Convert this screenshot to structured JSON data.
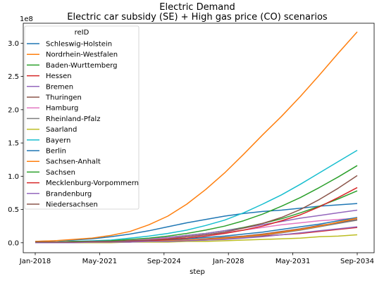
{
  "chart_data": {
    "type": "line",
    "title": "Electric Demand",
    "subtitle": "Electric car subsidy (SE) + High gas price (CO) scenarios",
    "xlabel": "step",
    "ylabel": "",
    "y_offset_label": "1e8",
    "x_ticks": [
      "Jan-2018",
      "May-2021",
      "Sep-2024",
      "Jan-2028",
      "May-2031",
      "Sep-2034"
    ],
    "y_ticks": [
      "0.0",
      "0.5",
      "1.0",
      "1.5",
      "2.0",
      "2.5",
      "3.0"
    ],
    "ylim": [
      -0.15,
      3.3
    ],
    "grid": false,
    "legend_title": "reID",
    "legend_position": "upper left",
    "x": [
      "Jan-2018",
      "Jan-2019",
      "Jan-2020",
      "Jan-2021",
      "Jan-2022",
      "Jan-2023",
      "Jan-2024",
      "Jan-2025",
      "Jan-2026",
      "Jan-2027",
      "Jan-2028",
      "Jan-2029",
      "Jan-2030",
      "Jan-2031",
      "Jan-2032",
      "Jan-2033",
      "Jan-2034",
      "Jan-2035"
    ],
    "series": [
      {
        "name": "Schleswig-Holstein",
        "color": "#1f77b4",
        "values": [
          0.02,
          0.03,
          0.04,
          0.06,
          0.09,
          0.13,
          0.18,
          0.24,
          0.3,
          0.35,
          0.4,
          0.44,
          0.47,
          0.49,
          0.52,
          0.55,
          0.57,
          0.59
        ]
      },
      {
        "name": "Nordrhein-Westfalen",
        "color": "#ff7f0e",
        "values": [
          0.02,
          0.03,
          0.05,
          0.07,
          0.11,
          0.17,
          0.27,
          0.4,
          0.58,
          0.8,
          1.05,
          1.33,
          1.62,
          1.9,
          2.2,
          2.52,
          2.85,
          3.17
        ]
      },
      {
        "name": "Baden-Wurttemberg",
        "color": "#2ca02c",
        "values": [
          0.01,
          0.01,
          0.01,
          0.02,
          0.02,
          0.03,
          0.05,
          0.08,
          0.11,
          0.14,
          0.18,
          0.23,
          0.29,
          0.36,
          0.45,
          0.55,
          0.66,
          0.78
        ]
      },
      {
        "name": "Hessen",
        "color": "#d62728",
        "values": [
          0.0,
          0.0,
          0.0,
          0.01,
          0.01,
          0.01,
          0.02,
          0.03,
          0.04,
          0.05,
          0.06,
          0.08,
          0.1,
          0.12,
          0.14,
          0.17,
          0.2,
          0.23
        ]
      },
      {
        "name": "Bremen",
        "color": "#9467bd",
        "values": [
          0.01,
          0.01,
          0.02,
          0.02,
          0.03,
          0.04,
          0.06,
          0.08,
          0.11,
          0.14,
          0.18,
          0.22,
          0.27,
          0.32,
          0.37,
          0.41,
          0.45,
          0.49
        ]
      },
      {
        "name": "Thuringen",
        "color": "#8c564b",
        "values": [
          0.0,
          0.0,
          0.01,
          0.01,
          0.01,
          0.02,
          0.02,
          0.03,
          0.04,
          0.06,
          0.08,
          0.1,
          0.13,
          0.17,
          0.21,
          0.26,
          0.3,
          0.35
        ]
      },
      {
        "name": "Hamburg",
        "color": "#e377c2",
        "values": [
          0.01,
          0.01,
          0.01,
          0.02,
          0.03,
          0.04,
          0.05,
          0.07,
          0.09,
          0.12,
          0.15,
          0.19,
          0.23,
          0.27,
          0.3,
          0.33,
          0.35,
          0.37
        ]
      },
      {
        "name": "Rheinland-Pfalz",
        "color": "#7f7f7f",
        "values": [
          0.0,
          0.0,
          0.0,
          0.01,
          0.01,
          0.01,
          0.02,
          0.02,
          0.03,
          0.04,
          0.06,
          0.08,
          0.11,
          0.15,
          0.19,
          0.24,
          0.29,
          0.34
        ]
      },
      {
        "name": "Saarland",
        "color": "#bcbd22",
        "values": [
          0.0,
          0.0,
          0.0,
          0.0,
          0.0,
          0.01,
          0.01,
          0.01,
          0.02,
          0.02,
          0.03,
          0.04,
          0.05,
          0.06,
          0.07,
          0.09,
          0.1,
          0.12
        ]
      },
      {
        "name": "Bayern",
        "color": "#17becf",
        "values": [
          0.01,
          0.01,
          0.02,
          0.03,
          0.04,
          0.07,
          0.1,
          0.14,
          0.19,
          0.26,
          0.34,
          0.45,
          0.58,
          0.72,
          0.88,
          1.05,
          1.22,
          1.39
        ]
      },
      {
        "name": "Berlin",
        "color": "#1f77b4",
        "values": [
          0.0,
          0.0,
          0.01,
          0.01,
          0.02,
          0.02,
          0.03,
          0.04,
          0.06,
          0.08,
          0.1,
          0.13,
          0.16,
          0.2,
          0.24,
          0.28,
          0.33,
          0.38
        ]
      },
      {
        "name": "Sachsen-Anhalt",
        "color": "#ff7f0e",
        "values": [
          0.0,
          0.0,
          0.0,
          0.01,
          0.01,
          0.02,
          0.02,
          0.03,
          0.04,
          0.05,
          0.07,
          0.09,
          0.12,
          0.16,
          0.2,
          0.25,
          0.31,
          0.37
        ]
      },
      {
        "name": "Sachsen",
        "color": "#2ca02c",
        "values": [
          0.01,
          0.01,
          0.02,
          0.02,
          0.03,
          0.05,
          0.07,
          0.1,
          0.14,
          0.19,
          0.25,
          0.33,
          0.43,
          0.55,
          0.68,
          0.83,
          0.99,
          1.16
        ]
      },
      {
        "name": "Mecklenburg-Vorpommern",
        "color": "#d62728",
        "values": [
          0.0,
          0.0,
          0.01,
          0.01,
          0.01,
          0.02,
          0.03,
          0.05,
          0.07,
          0.1,
          0.14,
          0.19,
          0.25,
          0.33,
          0.42,
          0.54,
          0.68,
          0.83
        ]
      },
      {
        "name": "Brandenburg",
        "color": "#9467bd",
        "values": [
          0.0,
          0.0,
          0.0,
          0.01,
          0.01,
          0.01,
          0.02,
          0.02,
          0.03,
          0.04,
          0.05,
          0.07,
          0.09,
          0.12,
          0.15,
          0.18,
          0.21,
          0.24
        ]
      },
      {
        "name": "Niedersachsen",
        "color": "#8c564b",
        "values": [
          0.01,
          0.01,
          0.01,
          0.02,
          0.02,
          0.03,
          0.04,
          0.06,
          0.09,
          0.12,
          0.16,
          0.22,
          0.29,
          0.38,
          0.5,
          0.65,
          0.82,
          1.01
        ]
      }
    ]
  }
}
